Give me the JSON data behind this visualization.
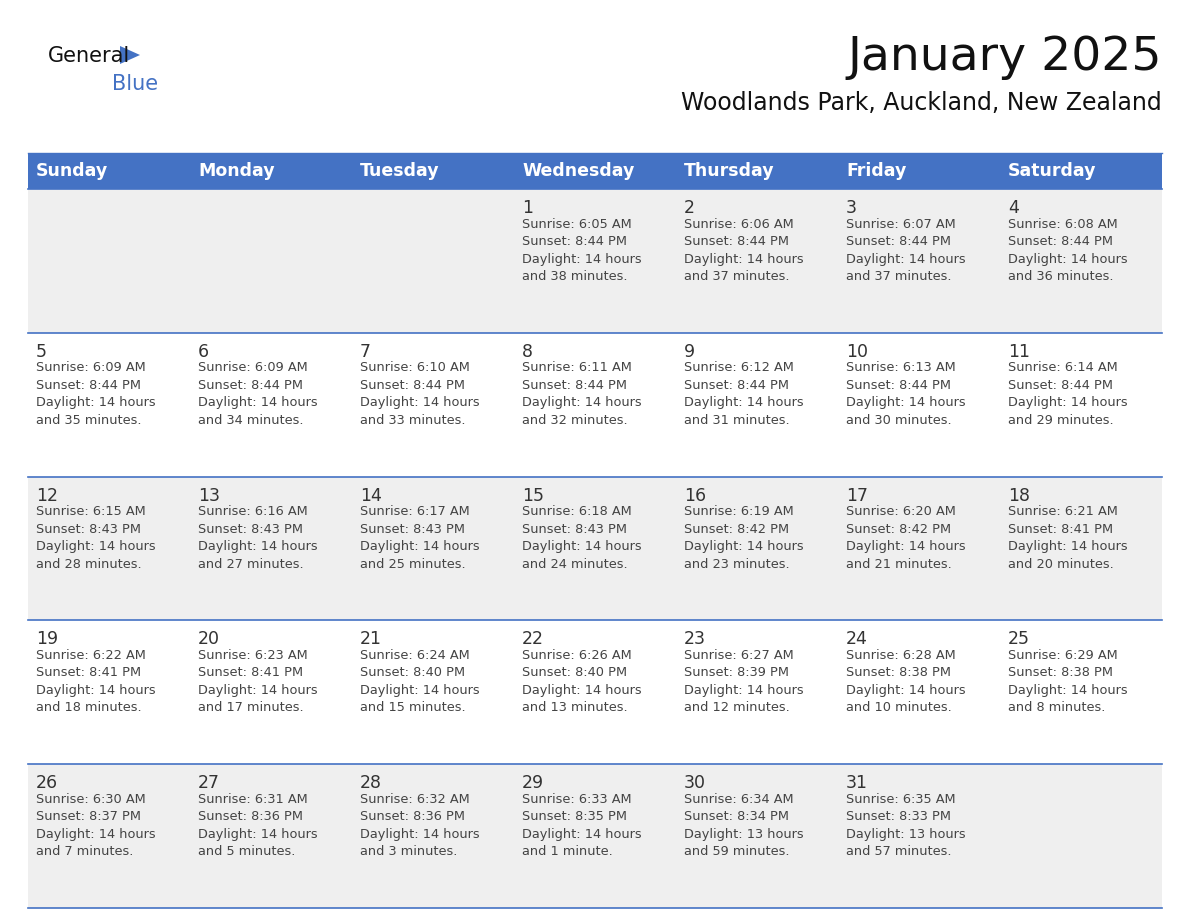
{
  "title": "January 2025",
  "subtitle": "Woodlands Park, Auckland, New Zealand",
  "days_of_week": [
    "Sunday",
    "Monday",
    "Tuesday",
    "Wednesday",
    "Thursday",
    "Friday",
    "Saturday"
  ],
  "header_bg": "#4472C4",
  "header_text": "#FFFFFF",
  "row_bg_odd": "#EFEFEF",
  "row_bg_even": "#FFFFFF",
  "cell_border": "#4472C4",
  "day_number_color": "#333333",
  "cell_text_color": "#444444",
  "calendar_data": [
    [
      null,
      null,
      null,
      {
        "day": "1",
        "sunrise": "6:05 AM",
        "sunset": "8:44 PM",
        "daylight_h": "14 hours",
        "daylight_m": "and 38 minutes."
      },
      {
        "day": "2",
        "sunrise": "6:06 AM",
        "sunset": "8:44 PM",
        "daylight_h": "14 hours",
        "daylight_m": "and 37 minutes."
      },
      {
        "day": "3",
        "sunrise": "6:07 AM",
        "sunset": "8:44 PM",
        "daylight_h": "14 hours",
        "daylight_m": "and 37 minutes."
      },
      {
        "day": "4",
        "sunrise": "6:08 AM",
        "sunset": "8:44 PM",
        "daylight_h": "14 hours",
        "daylight_m": "and 36 minutes."
      }
    ],
    [
      {
        "day": "5",
        "sunrise": "6:09 AM",
        "sunset": "8:44 PM",
        "daylight_h": "14 hours",
        "daylight_m": "and 35 minutes."
      },
      {
        "day": "6",
        "sunrise": "6:09 AM",
        "sunset": "8:44 PM",
        "daylight_h": "14 hours",
        "daylight_m": "and 34 minutes."
      },
      {
        "day": "7",
        "sunrise": "6:10 AM",
        "sunset": "8:44 PM",
        "daylight_h": "14 hours",
        "daylight_m": "and 33 minutes."
      },
      {
        "day": "8",
        "sunrise": "6:11 AM",
        "sunset": "8:44 PM",
        "daylight_h": "14 hours",
        "daylight_m": "and 32 minutes."
      },
      {
        "day": "9",
        "sunrise": "6:12 AM",
        "sunset": "8:44 PM",
        "daylight_h": "14 hours",
        "daylight_m": "and 31 minutes."
      },
      {
        "day": "10",
        "sunrise": "6:13 AM",
        "sunset": "8:44 PM",
        "daylight_h": "14 hours",
        "daylight_m": "and 30 minutes."
      },
      {
        "day": "11",
        "sunrise": "6:14 AM",
        "sunset": "8:44 PM",
        "daylight_h": "14 hours",
        "daylight_m": "and 29 minutes."
      }
    ],
    [
      {
        "day": "12",
        "sunrise": "6:15 AM",
        "sunset": "8:43 PM",
        "daylight_h": "14 hours",
        "daylight_m": "and 28 minutes."
      },
      {
        "day": "13",
        "sunrise": "6:16 AM",
        "sunset": "8:43 PM",
        "daylight_h": "14 hours",
        "daylight_m": "and 27 minutes."
      },
      {
        "day": "14",
        "sunrise": "6:17 AM",
        "sunset": "8:43 PM",
        "daylight_h": "14 hours",
        "daylight_m": "and 25 minutes."
      },
      {
        "day": "15",
        "sunrise": "6:18 AM",
        "sunset": "8:43 PM",
        "daylight_h": "14 hours",
        "daylight_m": "and 24 minutes."
      },
      {
        "day": "16",
        "sunrise": "6:19 AM",
        "sunset": "8:42 PM",
        "daylight_h": "14 hours",
        "daylight_m": "and 23 minutes."
      },
      {
        "day": "17",
        "sunrise": "6:20 AM",
        "sunset": "8:42 PM",
        "daylight_h": "14 hours",
        "daylight_m": "and 21 minutes."
      },
      {
        "day": "18",
        "sunrise": "6:21 AM",
        "sunset": "8:41 PM",
        "daylight_h": "14 hours",
        "daylight_m": "and 20 minutes."
      }
    ],
    [
      {
        "day": "19",
        "sunrise": "6:22 AM",
        "sunset": "8:41 PM",
        "daylight_h": "14 hours",
        "daylight_m": "and 18 minutes."
      },
      {
        "day": "20",
        "sunrise": "6:23 AM",
        "sunset": "8:41 PM",
        "daylight_h": "14 hours",
        "daylight_m": "and 17 minutes."
      },
      {
        "day": "21",
        "sunrise": "6:24 AM",
        "sunset": "8:40 PM",
        "daylight_h": "14 hours",
        "daylight_m": "and 15 minutes."
      },
      {
        "day": "22",
        "sunrise": "6:26 AM",
        "sunset": "8:40 PM",
        "daylight_h": "14 hours",
        "daylight_m": "and 13 minutes."
      },
      {
        "day": "23",
        "sunrise": "6:27 AM",
        "sunset": "8:39 PM",
        "daylight_h": "14 hours",
        "daylight_m": "and 12 minutes."
      },
      {
        "day": "24",
        "sunrise": "6:28 AM",
        "sunset": "8:38 PM",
        "daylight_h": "14 hours",
        "daylight_m": "and 10 minutes."
      },
      {
        "day": "25",
        "sunrise": "6:29 AM",
        "sunset": "8:38 PM",
        "daylight_h": "14 hours",
        "daylight_m": "and 8 minutes."
      }
    ],
    [
      {
        "day": "26",
        "sunrise": "6:30 AM",
        "sunset": "8:37 PM",
        "daylight_h": "14 hours",
        "daylight_m": "and 7 minutes."
      },
      {
        "day": "27",
        "sunrise": "6:31 AM",
        "sunset": "8:36 PM",
        "daylight_h": "14 hours",
        "daylight_m": "and 5 minutes."
      },
      {
        "day": "28",
        "sunrise": "6:32 AM",
        "sunset": "8:36 PM",
        "daylight_h": "14 hours",
        "daylight_m": "and 3 minutes."
      },
      {
        "day": "29",
        "sunrise": "6:33 AM",
        "sunset": "8:35 PM",
        "daylight_h": "14 hours",
        "daylight_m": "and 1 minute."
      },
      {
        "day": "30",
        "sunrise": "6:34 AM",
        "sunset": "8:34 PM",
        "daylight_h": "13 hours",
        "daylight_m": "and 59 minutes."
      },
      {
        "day": "31",
        "sunrise": "6:35 AM",
        "sunset": "8:33 PM",
        "daylight_h": "13 hours",
        "daylight_m": "and 57 minutes."
      },
      null
    ]
  ],
  "logo_triangle_color": "#4472C4",
  "logo_blue_color": "#4472C4"
}
